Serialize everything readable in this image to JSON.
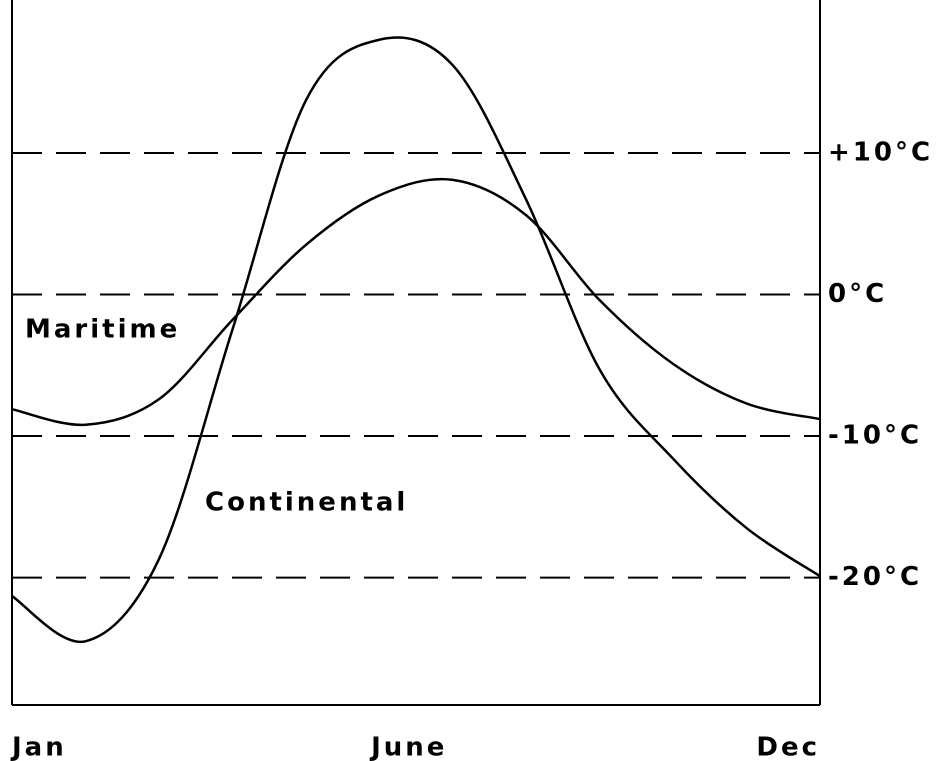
{
  "chart_data": {
    "type": "line",
    "categories": [
      "Jan",
      null,
      null,
      null,
      null,
      "June",
      null,
      null,
      null,
      null,
      null,
      "Dec"
    ],
    "series": [
      {
        "name": "Maritime",
        "color": "#000000",
        "values": [
          -8.1,
          -9.2,
          -7.4,
          -1.8,
          3.5,
          7.0,
          8.1,
          5.6,
          -0.4,
          -4.9,
          -7.7,
          -8.8
        ]
      },
      {
        "name": "Continental",
        "color": "#000000",
        "values": [
          -21.3,
          -24.5,
          -18.7,
          -2.5,
          13.7,
          18.0,
          16.2,
          6.7,
          -5.3,
          -11.6,
          -16.5,
          -19.9
        ]
      }
    ],
    "ylim": [
      -29,
      20.1
    ],
    "yticks": [
      {
        "value": 10,
        "label": "+10°C"
      },
      {
        "value": 0,
        "label": "0°C"
      },
      {
        "value": -10,
        "label": "-10°C"
      },
      {
        "value": -20,
        "label": "-20°C"
      }
    ],
    "grid": true,
    "grid_style": "dashed"
  }
}
